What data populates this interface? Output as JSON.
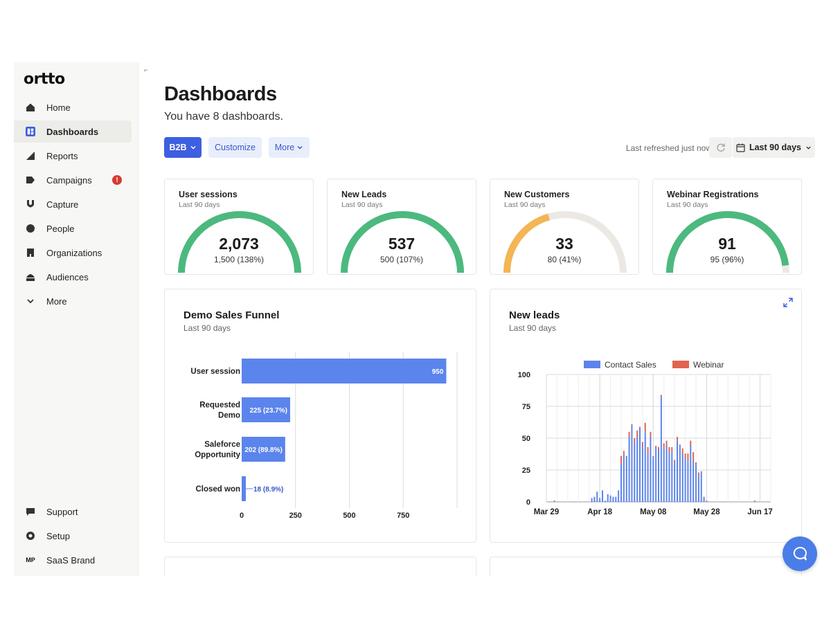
{
  "app": {
    "logo": "ortto",
    "corner_mark": "⌐"
  },
  "sidebar": {
    "items": [
      {
        "label": "Home",
        "icon": "home-icon"
      },
      {
        "label": "Dashboards",
        "icon": "dashboard-icon",
        "active": true
      },
      {
        "label": "Reports",
        "icon": "reports-icon"
      },
      {
        "label": "Campaigns",
        "icon": "campaigns-icon",
        "badge": "!"
      },
      {
        "label": "Capture",
        "icon": "capture-icon"
      },
      {
        "label": "People",
        "icon": "people-icon"
      },
      {
        "label": "Organizations",
        "icon": "organizations-icon"
      },
      {
        "label": "Audiences",
        "icon": "audiences-icon"
      },
      {
        "label": "More",
        "icon": "chevron-down-icon"
      }
    ],
    "bottom": [
      {
        "label": "Support",
        "icon": "support-icon"
      },
      {
        "label": "Setup",
        "icon": "settings-icon"
      },
      {
        "label": "SaaS Brand",
        "icon_text": "MP"
      }
    ]
  },
  "header": {
    "title": "Dashboards",
    "subtitle": "You have 8 dashboards.",
    "dashboard_select": "B2B",
    "customize_label": "Customize",
    "more_label": "More",
    "last_refreshed": "Last refreshed just now",
    "date_range": "Last 90 days"
  },
  "colors": {
    "primary": "#3d5fe0",
    "gauge_green": "#4cb97e",
    "gauge_orange": "#f4b554",
    "gauge_track": "#ece9e4",
    "bar_blue": "#5b84ec",
    "webinar_red": "#e0644f",
    "alert_red": "#d63b2f"
  },
  "kpis": [
    {
      "title": "User sessions",
      "period": "Last 90 days",
      "value": "2,073",
      "target": "1,500 (138%)",
      "fraction": 1.0,
      "color": "#4cb97e"
    },
    {
      "title": "New Leads",
      "period": "Last 90 days",
      "value": "537",
      "target": "500 (107%)",
      "fraction": 1.0,
      "color": "#4cb97e"
    },
    {
      "title": "New Customers",
      "period": "Last 90 days",
      "value": "33",
      "target": "80 (41%)",
      "fraction": 0.41,
      "color": "#f4b554"
    },
    {
      "title": "Webinar Registrations",
      "period": "Last 90 days",
      "value": "91",
      "target": "95 (96%)",
      "fraction": 0.96,
      "color": "#4cb97e"
    }
  ],
  "chart_data": [
    {
      "type": "bar",
      "orientation": "horizontal",
      "title": "Demo Sales Funnel",
      "subtitle": "Last 90 days",
      "categories": [
        "User session",
        "Requested Demo",
        "Saleforce Opportunity",
        "Closed won"
      ],
      "values": [
        950,
        225,
        202,
        18
      ],
      "data_labels": [
        "950",
        "225 (23.7%)",
        "202 (89.8%)",
        "18 (8.9%)"
      ],
      "xlim": [
        0,
        1000
      ],
      "xticks": [
        0,
        250,
        500,
        750
      ],
      "grid": true
    },
    {
      "type": "bar",
      "stacked": true,
      "title": "New leads",
      "subtitle": "Last 90 days",
      "series": [
        {
          "name": "Contact Sales",
          "color": "#5b84ec"
        },
        {
          "name": "Webinar",
          "color": "#e0644f"
        }
      ],
      "legend": "top",
      "ylim": [
        0,
        100
      ],
      "yticks": [
        0,
        25,
        50,
        75,
        100
      ],
      "xticks": [
        "Mar 29",
        "Apr 18",
        "May 08",
        "May 28",
        "Jun 17"
      ],
      "x_start": "Mar 29",
      "points": [
        [
          3,
          1,
          0
        ],
        [
          17,
          3,
          0
        ],
        [
          18,
          4,
          0
        ],
        [
          19,
          8,
          0
        ],
        [
          20,
          3,
          0
        ],
        [
          21,
          9,
          0
        ],
        [
          22,
          1,
          0
        ],
        [
          23,
          6,
          0
        ],
        [
          24,
          5,
          0
        ],
        [
          25,
          4,
          0
        ],
        [
          26,
          4,
          0
        ],
        [
          27,
          9,
          0
        ],
        [
          28,
          30,
          6
        ],
        [
          29,
          37,
          3
        ],
        [
          30,
          36,
          0
        ],
        [
          31,
          51,
          4
        ],
        [
          32,
          60,
          1
        ],
        [
          33,
          46,
          4
        ],
        [
          34,
          51,
          5
        ],
        [
          35,
          58,
          1
        ],
        [
          36,
          44,
          3
        ],
        [
          37,
          55,
          7
        ],
        [
          38,
          38,
          5
        ],
        [
          39,
          51,
          4
        ],
        [
          40,
          35,
          1
        ],
        [
          41,
          43,
          1
        ],
        [
          42,
          41,
          2
        ],
        [
          43,
          83,
          1
        ],
        [
          44,
          42,
          4
        ],
        [
          45,
          45,
          3
        ],
        [
          46,
          38,
          5
        ],
        [
          47,
          40,
          3
        ],
        [
          48,
          31,
          2
        ],
        [
          49,
          48,
          3
        ],
        [
          50,
          44,
          1
        ],
        [
          51,
          38,
          4
        ],
        [
          52,
          35,
          3
        ],
        [
          53,
          32,
          6
        ],
        [
          54,
          44,
          4
        ],
        [
          55,
          33,
          6
        ],
        [
          56,
          29,
          2
        ],
        [
          57,
          20,
          3
        ],
        [
          58,
          24,
          0
        ],
        [
          59,
          3,
          1
        ],
        [
          60,
          1,
          0
        ],
        [
          78,
          1,
          0
        ]
      ],
      "points_format": "[day_index from Mar 29, contact_sales, webinar]"
    }
  ]
}
